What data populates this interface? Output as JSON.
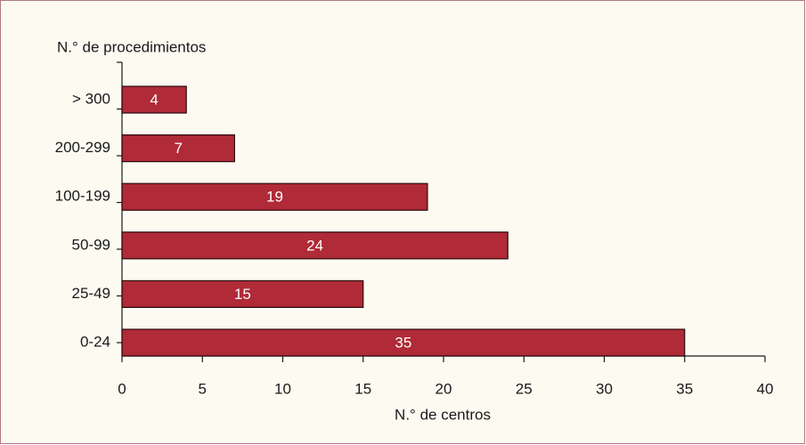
{
  "chart_data": {
    "type": "bar",
    "orientation": "horizontal",
    "y_axis_label": "N.° de procedimientos",
    "x_axis_label": "N.° de centros",
    "categories": [
      "> 300",
      "200-299",
      "100-199",
      "50-99",
      "25-49",
      "0-24"
    ],
    "values": [
      4,
      7,
      19,
      24,
      15,
      35
    ],
    "color": "#b02a37",
    "xlim": [
      0,
      40
    ],
    "xticks": [
      0,
      5,
      10,
      15,
      20,
      25,
      30,
      35,
      40
    ]
  }
}
